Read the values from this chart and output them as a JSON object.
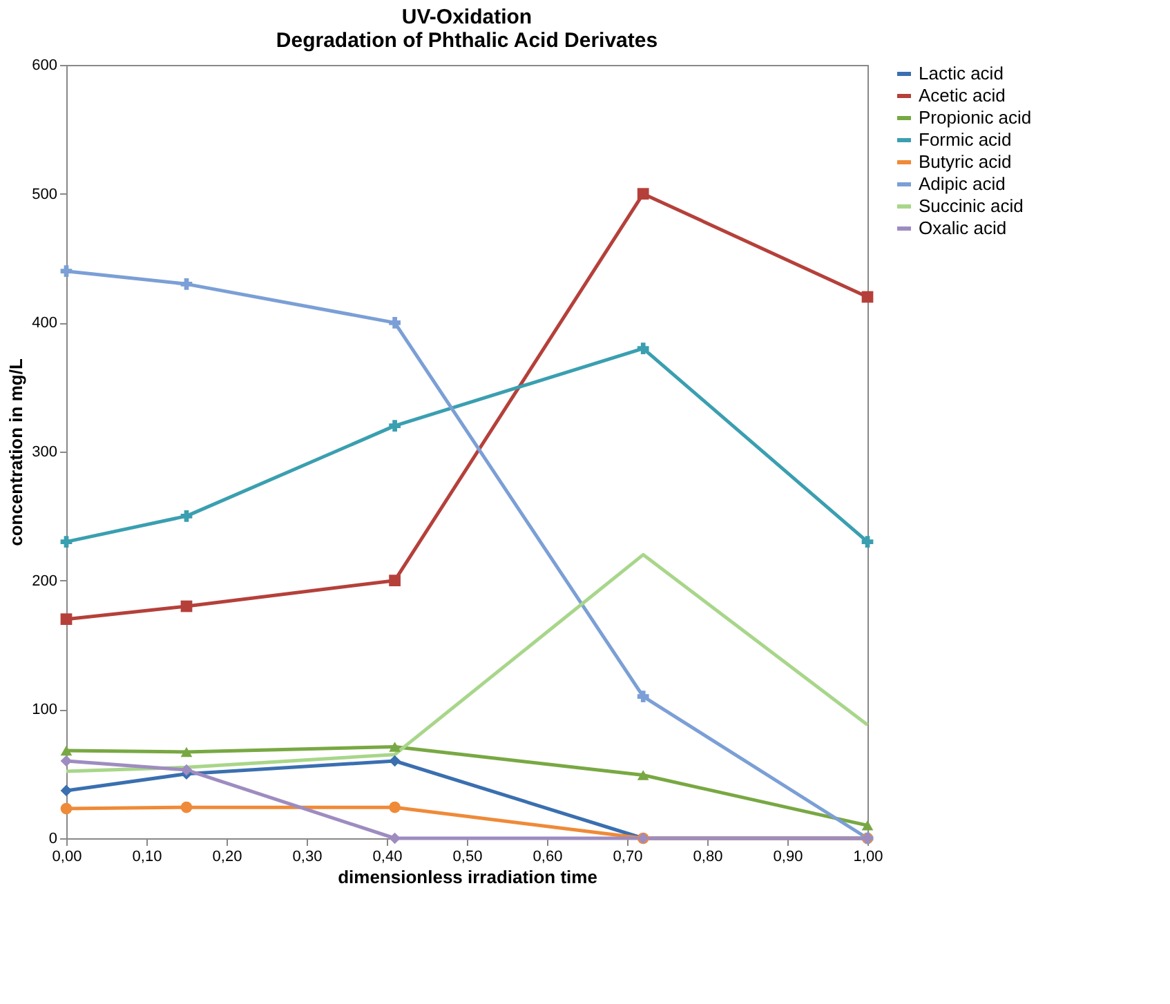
{
  "chart_data": {
    "type": "line",
    "title": "UV-Oxidation\nDegradation of Phthalic Acid Derivates",
    "xlabel": "dimensionless irradiation time",
    "ylabel": "concentration in mg/L",
    "x": [
      0,
      0.15,
      0.41,
      0.72,
      1.0
    ],
    "series": [
      {
        "name": "Lactic acid",
        "color": "#3a6fb0",
        "marker": "diamond",
        "values": [
          37,
          50,
          60,
          0,
          0
        ]
      },
      {
        "name": "Acetic acid",
        "color": "#b5403a",
        "marker": "square",
        "values": [
          170,
          180,
          200,
          500,
          420
        ]
      },
      {
        "name": "Propionic acid",
        "color": "#78a843",
        "marker": "triangle",
        "values": [
          68,
          67,
          71,
          49,
          10
        ]
      },
      {
        "name": "Formic acid",
        "color": "#3a9fb0",
        "marker": "cross",
        "values": [
          230,
          250,
          320,
          380,
          230
        ]
      },
      {
        "name": "Butyric acid",
        "color": "#ef8a38",
        "marker": "circle",
        "values": [
          23,
          24,
          24,
          0,
          0
        ]
      },
      {
        "name": "Adipic acid",
        "color": "#7b9fd6",
        "marker": "cross",
        "values": [
          440,
          430,
          400,
          110,
          0
        ]
      },
      {
        "name": "Succinic acid",
        "color": "#a8d68a",
        "marker": "none",
        "values": [
          52,
          55,
          65,
          220,
          88
        ]
      },
      {
        "name": "Oxalic acid",
        "color": "#9e8cc0",
        "marker": "diamond",
        "values": [
          60,
          53,
          0,
          0,
          0
        ]
      }
    ],
    "xlim": [
      0,
      1.0
    ],
    "xticks": [
      {
        "value": 0,
        "label": "0,00"
      },
      {
        "value": 0.1,
        "label": "0,10"
      },
      {
        "value": 0.2,
        "label": "0,20"
      },
      {
        "value": 0.3,
        "label": "0,30"
      },
      {
        "value": 0.4,
        "label": "0,40"
      },
      {
        "value": 0.5,
        "label": "0,50"
      },
      {
        "value": 0.6,
        "label": "0,60"
      },
      {
        "value": 0.7,
        "label": "0,70"
      },
      {
        "value": 0.8,
        "label": "0,80"
      },
      {
        "value": 0.9,
        "label": "0,90"
      },
      {
        "value": 1.0,
        "label": "1,00"
      }
    ],
    "ylim": [
      0,
      600
    ],
    "yticks": [
      0,
      100,
      200,
      300,
      400,
      500,
      600
    ],
    "grid": false,
    "legend": "right",
    "line_style": "solid"
  }
}
